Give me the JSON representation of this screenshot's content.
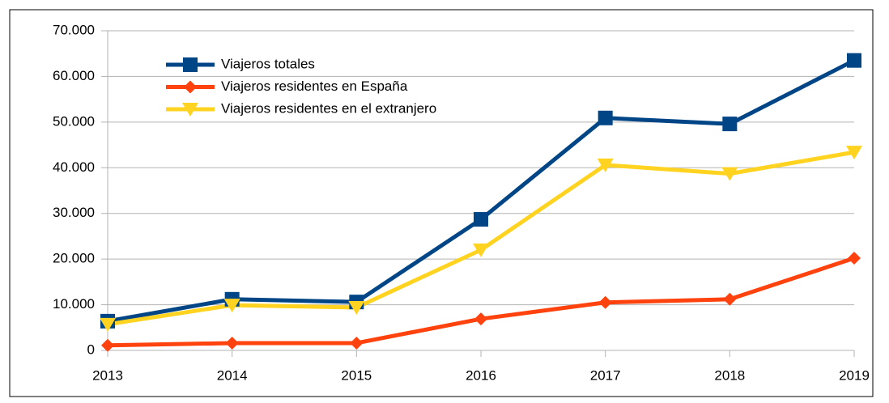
{
  "chart_data": {
    "type": "line",
    "categories": [
      "2013",
      "2014",
      "2015",
      "2016",
      "2017",
      "2018",
      "2019"
    ],
    "series": [
      {
        "name": "Viajeros totales",
        "color": "#004586",
        "marker": "square",
        "values": [
          6400,
          11200,
          10600,
          28700,
          50900,
          49600,
          63500
        ]
      },
      {
        "name": "Viajeros residentes en España",
        "color": "#ff420e",
        "marker": "diamond",
        "values": [
          1100,
          1600,
          1600,
          6900,
          10500,
          11200,
          20200
        ]
      },
      {
        "name": "Viajeros  residentes en el extranjero",
        "color": "#ffd320",
        "marker": "triangle-down",
        "values": [
          5700,
          9900,
          9400,
          22000,
          40600,
          38700,
          43400
        ]
      }
    ],
    "ylim": [
      0,
      70000
    ],
    "yticks": [
      0,
      {
        "value": 10000,
        "label": "10.000"
      },
      {
        "value": 20000,
        "label": "20.000"
      },
      {
        "value": 30000,
        "label": "30.000"
      },
      {
        "value": 40000,
        "label": "40.000"
      },
      {
        "value": 50000,
        "label": "50.000"
      },
      {
        "value": 60000,
        "label": "60.000"
      },
      {
        "value": 70000,
        "label": "70.000"
      }
    ],
    "grid": true,
    "legend": "upper left"
  }
}
